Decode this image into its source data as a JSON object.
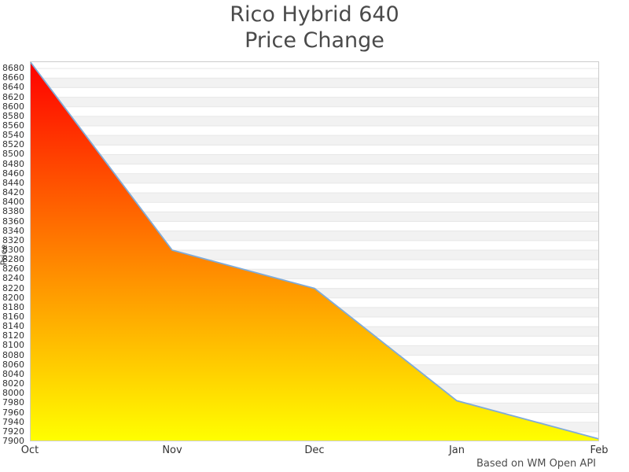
{
  "title": {
    "line1": "Rico Hybrid 640",
    "line2": "Price Change"
  },
  "caption": "Based on WM Open API",
  "chart_data": {
    "type": "area",
    "title": "Rico Hybrid 640 Price Change",
    "x": [
      "Oct",
      "Nov",
      "Dec",
      "Jan",
      "Feb"
    ],
    "series": [
      {
        "name": "Price",
        "values": [
          8695,
          8300,
          8220,
          7985,
          7905
        ]
      }
    ],
    "xlabel": "",
    "ylabel": "Price",
    "ylim": [
      7900,
      8695
    ],
    "y_tick_step": 20,
    "y_ticks": [
      8680,
      8660,
      8640,
      8620,
      8600,
      8580,
      8560,
      8540,
      8520,
      8500,
      8480,
      8460,
      8440,
      8420,
      8400,
      8380,
      8360,
      8340,
      8320,
      8300,
      8280,
      8260,
      8240,
      8220,
      8200,
      8180,
      8160,
      8140,
      8120,
      8100,
      8080,
      8060,
      8040,
      8020,
      8000,
      7980,
      7960,
      7940,
      7920,
      7900
    ],
    "grid": "horizontal-stripes",
    "legend": "none",
    "colors": {
      "gradient_top": "#ff0000",
      "gradient_bottom": "#ffff00",
      "line": "#7fabd8",
      "stripe": "#f2f2f2",
      "gridline": "#e7e7e7",
      "border": "#cccccc",
      "title": "#4a4a4a",
      "tick": "#333333"
    }
  }
}
